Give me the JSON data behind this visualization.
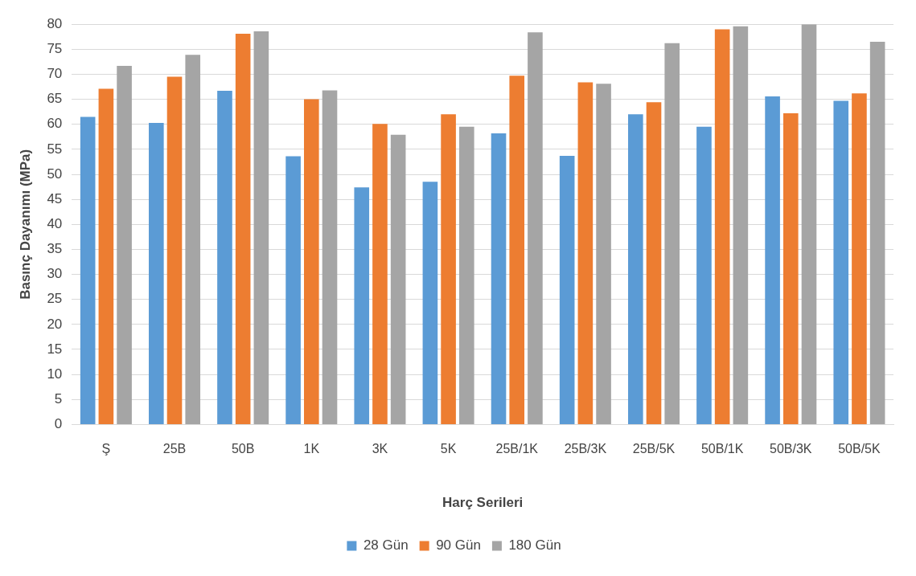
{
  "chart_data": {
    "type": "bar",
    "xlabel": "Harç Serileri",
    "ylabel": "Basınç Dayanımı (MPa)",
    "categories": [
      "Ş",
      "25B",
      "50B",
      "1K",
      "3K",
      "5K",
      "25B/1K",
      "25B/3K",
      "25B/5K",
      "50B/1K",
      "50B/3K",
      "50B/5K"
    ],
    "series": [
      {
        "name": "28 Gün",
        "color": "#5b9bd5",
        "values": [
          61.5,
          60.3,
          66.7,
          53.6,
          47.4,
          48.5,
          58.2,
          53.7,
          62.0,
          59.5,
          65.6,
          64.7
        ]
      },
      {
        "name": "90 Gün",
        "color": "#ed7d31",
        "values": [
          67.1,
          69.5,
          78.1,
          65.0,
          60.1,
          62.0,
          69.7,
          68.4,
          64.4,
          79.0,
          62.2,
          66.2
        ]
      },
      {
        "name": "180 Gün",
        "color": "#a5a5a5",
        "values": [
          71.7,
          73.9,
          78.6,
          66.8,
          57.9,
          59.5,
          78.4,
          68.1,
          76.2,
          79.6,
          80.0,
          76.5
        ]
      }
    ],
    "ylim": [
      0,
      80
    ],
    "yticks": [
      0,
      5,
      10,
      15,
      20,
      25,
      30,
      35,
      40,
      45,
      50,
      55,
      60,
      65,
      70,
      75,
      80
    ],
    "grid": "y",
    "legend": "bottom"
  }
}
